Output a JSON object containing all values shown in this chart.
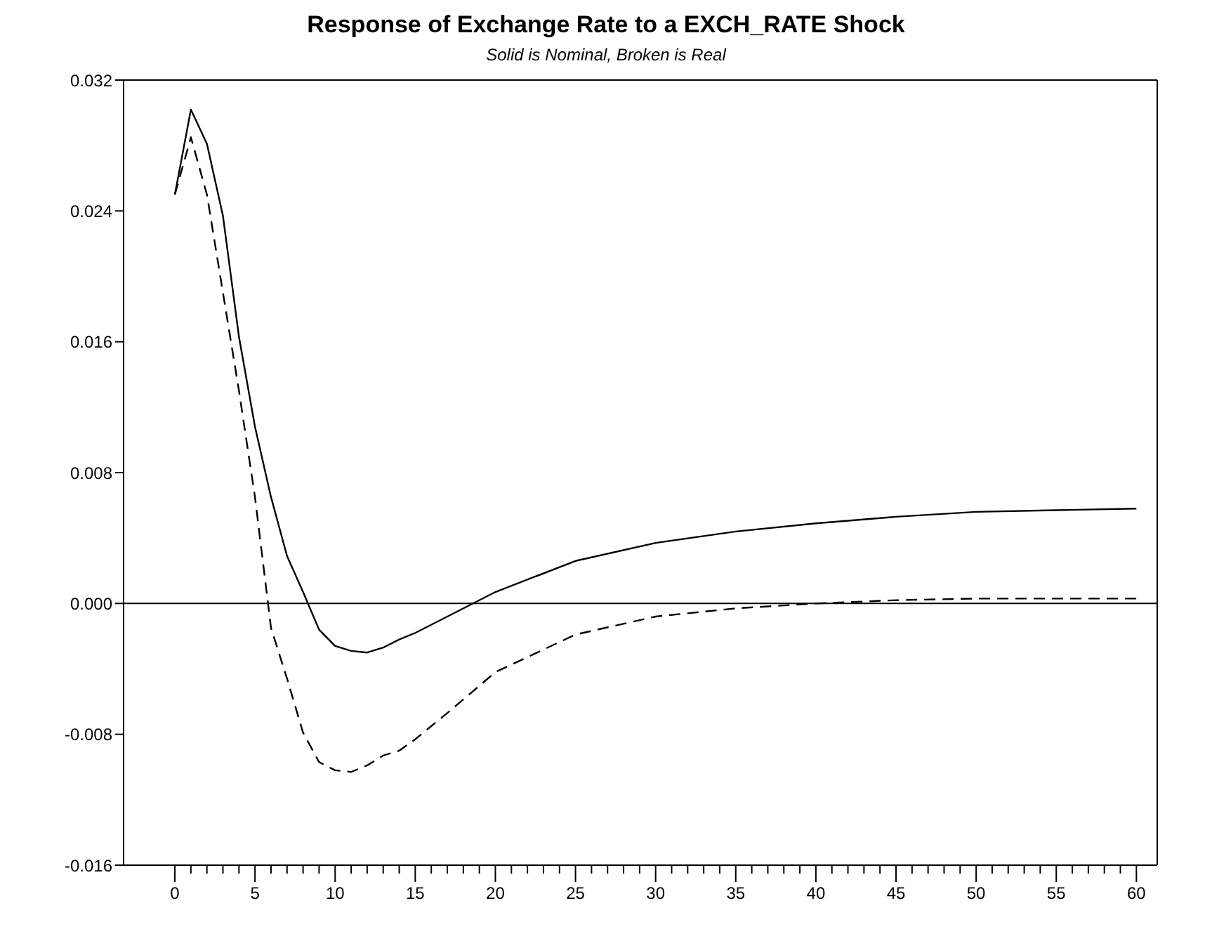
{
  "chart_data": {
    "type": "line",
    "title": "Response of Exchange Rate to a EXCH_RATE Shock",
    "subtitle": "Solid is Nominal, Broken is Real",
    "series": [
      {
        "color": "#000000",
        "line_style": "solid",
        "x": [
          0,
          1,
          2,
          3,
          4,
          5,
          6,
          7,
          8,
          9,
          10,
          11,
          12,
          13,
          14,
          15,
          17,
          20,
          25,
          30,
          35,
          40,
          45,
          50,
          55,
          60
        ],
        "values": [
          0.025,
          0.0302,
          0.0281,
          0.0237,
          0.0163,
          0.0108,
          0.0065,
          0.0029,
          0.0007,
          -0.0016,
          -0.0026,
          -0.0029,
          -0.003,
          -0.0027,
          -0.0022,
          -0.0018,
          -0.0008,
          0.0007,
          0.0026,
          0.0037,
          0.0044,
          0.0049,
          0.0053,
          0.0056,
          0.0057,
          0.0058
        ]
      },
      {
        "color": "#000000",
        "line_style": "dashed",
        "x": [
          0,
          1,
          2,
          3,
          4,
          5,
          6,
          7,
          8,
          9,
          10,
          11,
          12,
          13,
          14,
          15,
          17,
          20,
          25,
          30,
          35,
          40,
          45,
          50,
          55,
          60
        ],
        "values": [
          0.025,
          0.0285,
          0.025,
          0.019,
          0.013,
          0.0065,
          -0.0015,
          -0.0046,
          -0.0079,
          -0.0097,
          -0.0102,
          -0.0103,
          -0.0099,
          -0.0093,
          -0.009,
          -0.0083,
          -0.0067,
          -0.0042,
          -0.0019,
          -0.0008,
          -0.0003,
          0.0,
          0.0002,
          0.0003,
          0.0003,
          0.0003
        ]
      }
    ],
    "xlim": [
      -3.2,
      61.3
    ],
    "xticks": [
      0,
      {
        "value": 1,
        "label": null
      },
      {
        "value": 2,
        "label": null
      },
      {
        "value": 3,
        "label": null
      },
      {
        "value": 4,
        "label": null
      },
      5,
      {
        "value": 6,
        "label": null
      },
      {
        "value": 7,
        "label": null
      },
      {
        "value": 8,
        "label": null
      },
      {
        "value": 9,
        "label": null
      },
      10,
      {
        "value": 11,
        "label": null
      },
      {
        "value": 12,
        "label": null
      },
      {
        "value": 13,
        "label": null
      },
      {
        "value": 14,
        "label": null
      },
      15,
      {
        "value": 16,
        "label": null
      },
      {
        "value": 17,
        "label": null
      },
      {
        "value": 18,
        "label": null
      },
      {
        "value": 19,
        "label": null
      },
      20,
      {
        "value": 21,
        "label": null
      },
      {
        "value": 22,
        "label": null
      },
      {
        "value": 23,
        "label": null
      },
      {
        "value": 24,
        "label": null
      },
      25,
      {
        "value": 26,
        "label": null
      },
      {
        "value": 27,
        "label": null
      },
      {
        "value": 28,
        "label": null
      },
      {
        "value": 29,
        "label": null
      },
      30,
      {
        "value": 31,
        "label": null
      },
      {
        "value": 32,
        "label": null
      },
      {
        "value": 33,
        "label": null
      },
      {
        "value": 34,
        "label": null
      },
      35,
      {
        "value": 36,
        "label": null
      },
      {
        "value": 37,
        "label": null
      },
      {
        "value": 38,
        "label": null
      },
      {
        "value": 39,
        "label": null
      },
      40,
      {
        "value": 41,
        "label": null
      },
      {
        "value": 42,
        "label": null
      },
      {
        "value": 43,
        "label": null
      },
      {
        "value": 44,
        "label": null
      },
      45,
      {
        "value": 46,
        "label": null
      },
      {
        "value": 47,
        "label": null
      },
      {
        "value": 48,
        "label": null
      },
      {
        "value": 49,
        "label": null
      },
      50,
      {
        "value": 51,
        "label": null
      },
      {
        "value": 52,
        "label": null
      },
      {
        "value": 53,
        "label": null
      },
      {
        "value": 54,
        "label": null
      },
      55,
      {
        "value": 56,
        "label": null
      },
      {
        "value": 57,
        "label": null
      },
      {
        "value": 58,
        "label": null
      },
      {
        "value": 59,
        "label": null
      },
      60
    ],
    "ylim": [
      -0.016,
      0.032
    ],
    "yticks": [
      {
        "value": -0.016,
        "label": "-0.016"
      },
      {
        "value": -0.008,
        "label": "-0.008"
      },
      {
        "value": 0,
        "label": "0.000"
      },
      {
        "value": 0.008,
        "label": "0.008"
      },
      {
        "value": 0.016,
        "label": "0.016"
      },
      {
        "value": 0.024,
        "label": "0.024"
      },
      {
        "value": 0.032,
        "label": "0.032"
      }
    ],
    "ref_lines": [
      {
        "axis": "y",
        "value": 0,
        "color": "#000000"
      }
    ]
  }
}
